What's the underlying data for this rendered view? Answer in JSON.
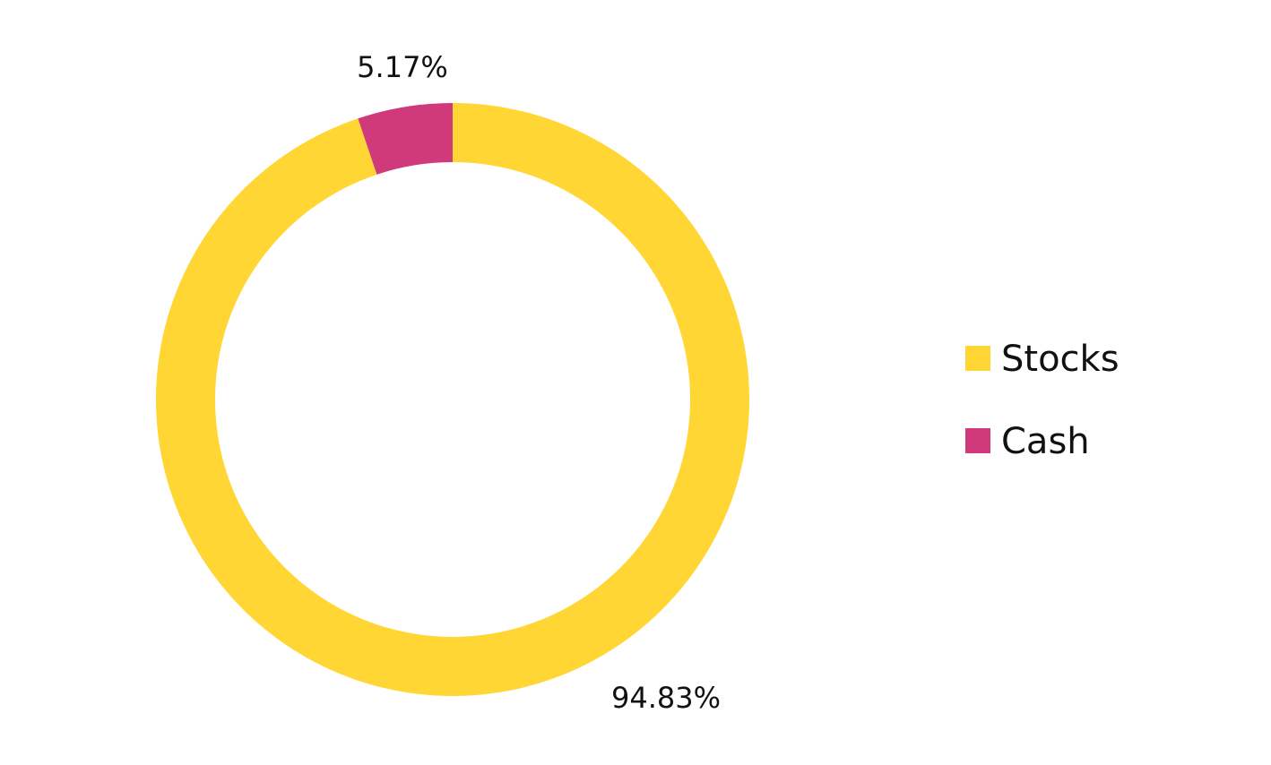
{
  "chart_data": {
    "type": "pie",
    "variant": "donut",
    "categories": [
      "Stocks",
      "Cash"
    ],
    "values": [
      94.83,
      5.17
    ],
    "data_labels": [
      "94.83%",
      "5.17%"
    ],
    "colors": [
      "#FFD633",
      "#D03A7A"
    ],
    "start_angle_deg": 0,
    "direction": "clockwise",
    "legend": {
      "position": "right",
      "entries": [
        "Stocks",
        "Cash"
      ]
    },
    "title": ""
  }
}
